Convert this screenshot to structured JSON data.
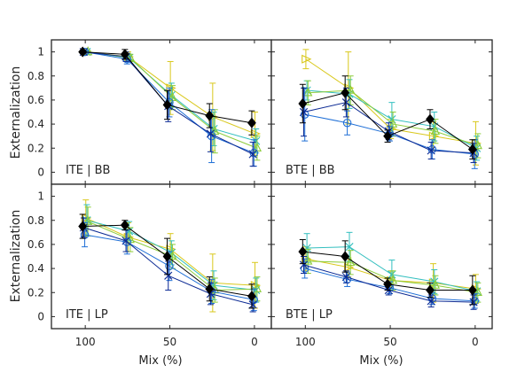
{
  "chart_data": {
    "type": "line",
    "ylabel": "Externalization",
    "xlabel": "Mix (%)",
    "x": [
      100,
      75,
      50,
      25,
      0
    ],
    "xticks": [
      "100",
      "50",
      "0"
    ],
    "xtick_values": [
      100,
      50,
      0
    ],
    "yticks": [
      "0",
      "0.2",
      "0.4",
      "0.6",
      "0.8",
      "1"
    ],
    "ytick_values": [
      0,
      0.2,
      0.4,
      0.6,
      0.8,
      1
    ],
    "ylim": [
      -0.1,
      1.1
    ],
    "xlim": [
      120,
      -10
    ],
    "grid": false,
    "series_colors": [
      "#000000",
      "#0c2a94",
      "#1f6fd6",
      "#d9c81c",
      "#33bfbf",
      "#8ccc3a"
    ],
    "panels": [
      {
        "label": "ITE | BB",
        "series": [
          {
            "values": [
              1.0,
              0.98,
              0.56,
              0.47,
              0.41
            ],
            "err": [
              0.01,
              0.04,
              0.12,
              0.1,
              0.1
            ],
            "marker": "diamond"
          },
          {
            "values": [
              1.0,
              0.96,
              0.55,
              0.32,
              0.15
            ],
            "err": [
              0.01,
              0.04,
              0.13,
              0.15,
              0.1
            ],
            "marker": "x"
          },
          {
            "values": [
              1.0,
              0.94,
              0.58,
              0.3,
              0.16
            ],
            "err": [
              0.01,
              0.04,
              0.12,
              0.22,
              0.11
            ],
            "marker": "circle"
          },
          {
            "values": [
              1.0,
              0.96,
              0.7,
              0.46,
              0.32
            ],
            "err": [
              0.01,
              0.04,
              0.22,
              0.28,
              0.18
            ],
            "marker": "triangle-right"
          },
          {
            "values": [
              1.0,
              0.95,
              0.64,
              0.36,
              0.26
            ],
            "err": [
              0.01,
              0.03,
              0.1,
              0.14,
              0.1
            ],
            "marker": "x"
          },
          {
            "values": [
              1.0,
              0.95,
              0.62,
              0.34,
              0.2
            ],
            "err": [
              0.01,
              0.03,
              0.1,
              0.18,
              0.1
            ],
            "marker": "triangle-up"
          }
        ]
      },
      {
        "label": "BTE | BB",
        "series": [
          {
            "values": [
              0.57,
              0.66,
              0.3,
              0.44,
              0.19
            ],
            "err": [
              0.16,
              0.14,
              0.05,
              0.08,
              0.08
            ],
            "marker": "diamond"
          },
          {
            "values": [
              0.5,
              0.58,
              0.34,
              0.18,
              0.16
            ],
            "err": [
              0.2,
              0.12,
              0.07,
              0.07,
              0.08
            ],
            "marker": "x"
          },
          {
            "values": [
              0.48,
              0.41,
              0.32,
              0.19,
              0.15
            ],
            "err": [
              0.22,
              0.1,
              0.06,
              0.08,
              0.12
            ],
            "marker": "circle"
          },
          {
            "values": [
              0.94,
              0.7,
              0.36,
              0.3,
              0.24
            ],
            "err": [
              0.08,
              0.3,
              0.08,
              0.12,
              0.18
            ],
            "marker": "triangle-right"
          },
          {
            "values": [
              0.68,
              0.65,
              0.44,
              0.38,
              0.2
            ],
            "err": [
              0.08,
              0.12,
              0.14,
              0.12,
              0.1
            ],
            "marker": "x"
          },
          {
            "values": [
              0.66,
              0.68,
              0.4,
              0.34,
              0.22
            ],
            "err": [
              0.1,
              0.12,
              0.1,
              0.1,
              0.1
            ],
            "marker": "triangle-up"
          }
        ]
      },
      {
        "label": "ITE | LP",
        "series": [
          {
            "values": [
              0.75,
              0.76,
              0.5,
              0.23,
              0.17
            ],
            "err": [
              0.1,
              0.04,
              0.15,
              0.1,
              0.1
            ],
            "marker": "diamond"
          },
          {
            "values": [
              0.74,
              0.63,
              0.34,
              0.19,
              0.1
            ],
            "err": [
              0.08,
              0.09,
              0.12,
              0.09,
              0.06
            ],
            "marker": "x"
          },
          {
            "values": [
              0.68,
              0.62,
              0.42,
              0.21,
              0.14
            ],
            "err": [
              0.1,
              0.1,
              0.12,
              0.1,
              0.09
            ],
            "marker": "circle"
          },
          {
            "values": [
              0.82,
              0.66,
              0.56,
              0.28,
              0.26
            ],
            "err": [
              0.15,
              0.12,
              0.13,
              0.24,
              0.19
            ],
            "marker": "triangle-right"
          },
          {
            "values": [
              0.8,
              0.71,
              0.53,
              0.26,
              0.22
            ],
            "err": [
              0.13,
              0.08,
              0.1,
              0.12,
              0.1
            ],
            "marker": "x"
          },
          {
            "values": [
              0.79,
              0.64,
              0.5,
              0.22,
              0.23
            ],
            "err": [
              0.12,
              0.1,
              0.1,
              0.1,
              0.1
            ],
            "marker": "triangle-up"
          }
        ]
      },
      {
        "label": "BTE | LP",
        "series": [
          {
            "values": [
              0.54,
              0.5,
              0.27,
              0.22,
              0.22
            ],
            "err": [
              0.1,
              0.13,
              0.05,
              0.06,
              0.12
            ],
            "marker": "diamond"
          },
          {
            "values": [
              0.43,
              0.33,
              0.22,
              0.13,
              0.12
            ],
            "err": [
              0.07,
              0.05,
              0.04,
              0.05,
              0.06
            ],
            "marker": "x"
          },
          {
            "values": [
              0.4,
              0.31,
              0.24,
              0.15,
              0.13
            ],
            "err": [
              0.08,
              0.06,
              0.05,
              0.05,
              0.06
            ],
            "marker": "circle"
          },
          {
            "values": [
              0.48,
              0.41,
              0.3,
              0.28,
              0.23
            ],
            "err": [
              0.1,
              0.08,
              0.08,
              0.16,
              0.12
            ],
            "marker": "triangle-right"
          },
          {
            "values": [
              0.57,
              0.58,
              0.35,
              0.29,
              0.21
            ],
            "err": [
              0.12,
              0.12,
              0.12,
              0.1,
              0.08
            ],
            "marker": "x"
          },
          {
            "values": [
              0.46,
              0.45,
              0.3,
              0.26,
              0.2
            ],
            "err": [
              0.1,
              0.1,
              0.08,
              0.08,
              0.08
            ],
            "marker": "triangle-up"
          }
        ]
      }
    ]
  }
}
